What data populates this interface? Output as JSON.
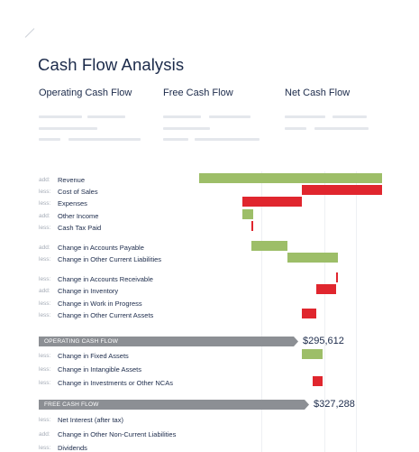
{
  "page": {
    "title": "Cash Flow Analysis",
    "metrics": [
      "Operating Cash Flow",
      "Free Cash Flow",
      "Net Cash Flow"
    ]
  },
  "chart_data": {
    "type": "waterfall",
    "colors": {
      "increase": "#9dbe68",
      "decrease": "#e0262e",
      "band": "#8c8f94"
    },
    "rows": [
      {
        "prefix": "add:",
        "label": "Revenue",
        "start": 0,
        "end": 203
      },
      {
        "prefix": "less:",
        "label": "Cost of Sales",
        "start": 203,
        "end": 114
      },
      {
        "prefix": "less:",
        "label": "Expenses",
        "start": 114,
        "end": 48
      },
      {
        "prefix": "add:",
        "label": "Other Income",
        "start": 48,
        "end": 60
      },
      {
        "prefix": "less:",
        "label": "Cash Tax Paid",
        "start": 60,
        "end": 58
      },
      {
        "prefix": "add:",
        "label": "Change in Accounts Payable",
        "start": 58,
        "end": 98
      },
      {
        "prefix": "less:",
        "label": "Change in Other Current Liabilities",
        "start": 98,
        "end": 154
      },
      {
        "prefix": "less:",
        "label": "Change in Accounts Receivable",
        "start": 154,
        "end": 152
      },
      {
        "prefix": "add:",
        "label": "Change in Inventory",
        "start": 152,
        "end": 130
      },
      {
        "prefix": "less:",
        "label": "Change in Work in Progress",
        "start": 130,
        "end": 130
      },
      {
        "prefix": "less:",
        "label": "Change in Other Current Assets",
        "start": 130,
        "end": 114
      },
      {
        "band": true,
        "label": "OPERATING CASH FLOW",
        "value": "$295,612"
      },
      {
        "prefix": "less:",
        "label": "Change in Fixed Assets",
        "start": 114,
        "end": 137
      },
      {
        "prefix": "less:",
        "label": "Change in Intangible Assets",
        "start": 137,
        "end": 137
      },
      {
        "prefix": "less:",
        "label": "Change in Investments or Other NCAs",
        "start": 137,
        "end": 126
      },
      {
        "band": true,
        "label": "FREE CASH FLOW",
        "value": "$327,288"
      },
      {
        "prefix": "less:",
        "label": "Net Interest (after tax)",
        "start": 126,
        "end": 126
      },
      {
        "prefix": "add:",
        "label": "Change in Other Non-Current Liabilities",
        "start": 126,
        "end": 126
      },
      {
        "prefix": "less:",
        "label": "Dividends",
        "start": 126,
        "end": 126
      }
    ]
  }
}
